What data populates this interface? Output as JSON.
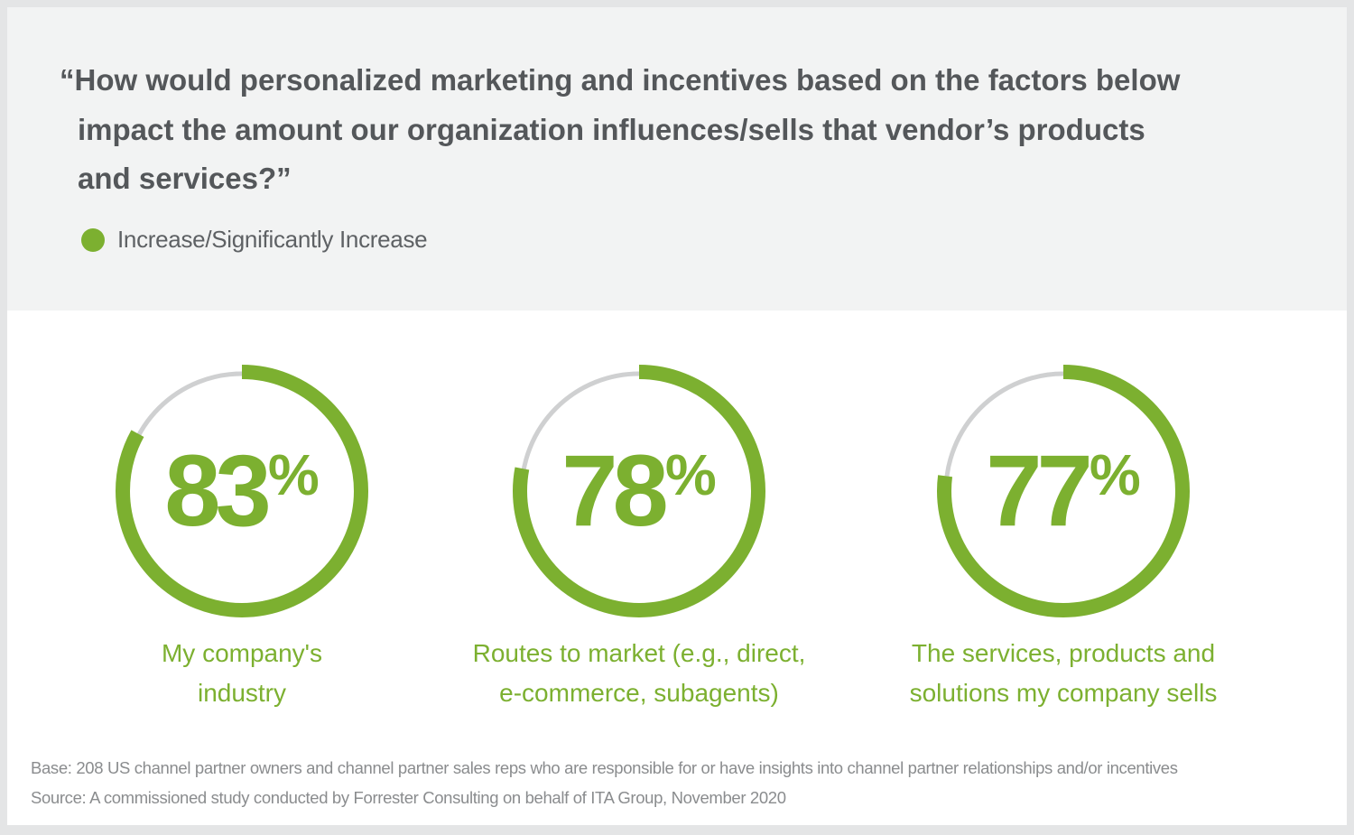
{
  "header": {
    "question_lines": [
      "“How would personalized marketing and incentives based on the factors below",
      "impact the amount our organization influences/sells that vendor’s products",
      "and services?”"
    ],
    "legend": {
      "label": "Increase/Significantly Increase",
      "color": "#7cb030"
    }
  },
  "gauges": [
    {
      "value": "83",
      "suffix": "%",
      "label_lines": [
        "My company's",
        "industry"
      ]
    },
    {
      "value": "78",
      "suffix": "%",
      "label_lines": [
        "Routes to market (e.g., direct,",
        "e-commerce, subagents)"
      ]
    },
    {
      "value": "77",
      "suffix": "%",
      "label_lines": [
        "The services, products and",
        "solutions my company sells"
      ]
    }
  ],
  "footnotes": {
    "base": "Base: 208 US channel partner owners and channel partner sales reps who are responsible for or have insights into channel partner relationships and/or incentives",
    "source": "Source: A commissioned study conducted by Forrester Consulting on behalf of ITA Group, November 2020"
  },
  "colors": {
    "accent": "#7cb030",
    "track": "#cfd0d1",
    "heading": "#54575a",
    "header_bg": "#f2f3f3"
  },
  "chart_data": {
    "type": "pie",
    "title": "“How would personalized marketing and incentives based on the factors below impact the amount our organization influences/sells that vendor’s products and services?”",
    "legend": [
      "Increase/Significantly Increase"
    ],
    "categories": [
      "My company's industry",
      "Routes to market (e.g., direct, e-commerce, subagents)",
      "The services, products and solutions my company sells"
    ],
    "values": [
      83,
      78,
      77
    ],
    "unit": "%",
    "style": "donut gauges",
    "base": "Base: 208 US channel partner owners and channel partner sales reps who are responsible for or have insights into channel partner relationships and/or incentives",
    "source": "Source: A commissioned study conducted by Forrester Consulting on behalf of ITA Group, November 2020"
  }
}
